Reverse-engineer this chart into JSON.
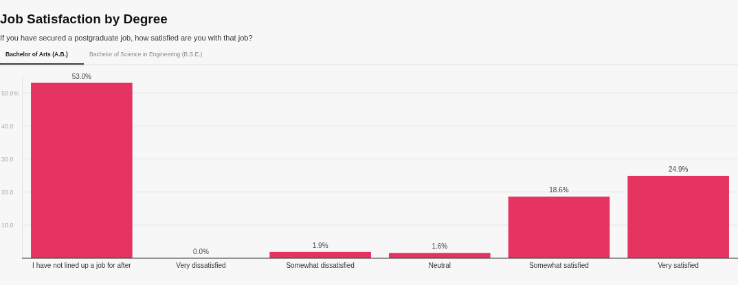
{
  "chart_data": {
    "type": "bar",
    "title": "Job Satisfaction by Degree",
    "subtitle": "If you have secured a postgraduate job, how satisfied are you with that job?",
    "annotations": [
      "Bachelor of Arts (A.B.)",
      "Bachelor of Science in Engineering (B.S.E.)"
    ],
    "categories": [
      "I have not lined up a job for after",
      "Very dissatisfied",
      "Somewhat dissatisfied",
      "Neutral",
      "Somewhat satisfied",
      "Very satisfied"
    ],
    "values": [
      53.0,
      0.0,
      1.9,
      1.6,
      18.6,
      24.9
    ],
    "value_labels": [
      "53.0%",
      "0.0%",
      "1.9%",
      "1.6%",
      "18.6%",
      "24.9%"
    ],
    "color": "#e63462",
    "ylim": [
      0,
      55
    ],
    "yticks": [
      {
        "value": 10,
        "label": "10.0"
      },
      {
        "value": 20,
        "label": "20.0"
      },
      {
        "value": 30,
        "label": "30.0"
      },
      {
        "value": 40,
        "label": "40.0"
      },
      {
        "value": 50,
        "label": "50.0%"
      }
    ],
    "grid": "y"
  }
}
